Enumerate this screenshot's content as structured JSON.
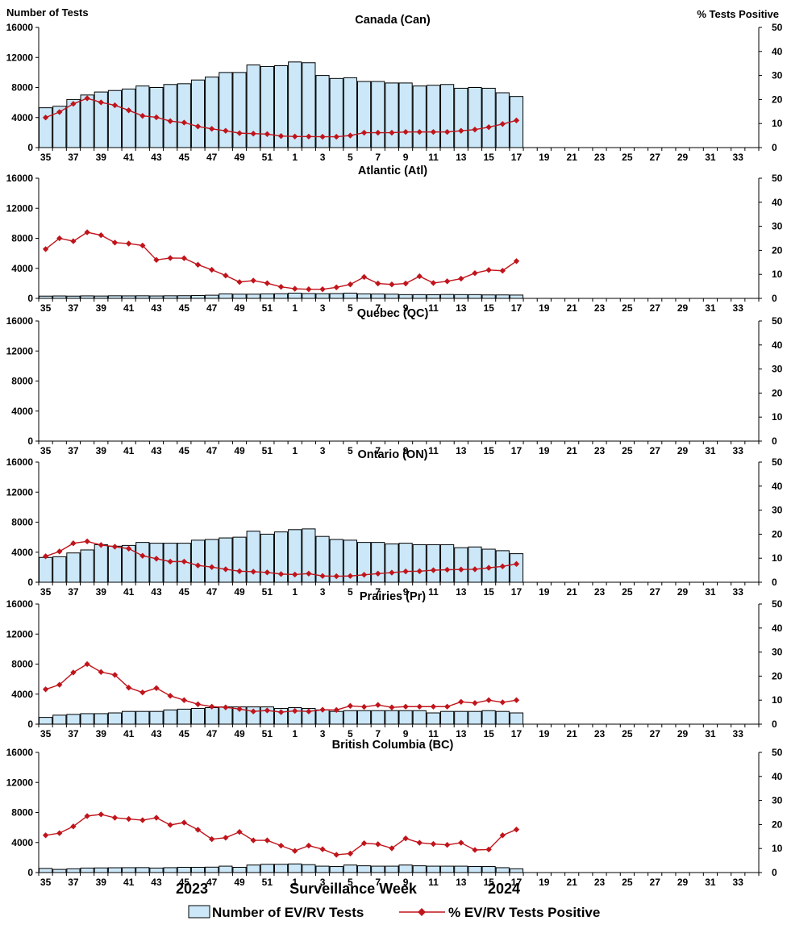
{
  "header": {
    "left_axis_title": "Number of Tests",
    "right_axis_title": "% Tests Positive"
  },
  "chart_data": {
    "type": "bar+line",
    "x_labels": [
      "35",
      "37",
      "39",
      "41",
      "43",
      "45",
      "47",
      "49",
      "51",
      "1",
      "3",
      "5",
      "7",
      "9",
      "11",
      "13",
      "15",
      "17",
      "19",
      "21",
      "23",
      "25",
      "27",
      "29",
      "31",
      "33"
    ],
    "y_left_ticks": [
      "0",
      "4000",
      "8000",
      "12000",
      "16000"
    ],
    "y_right_ticks": [
      "0",
      "10",
      "20",
      "30",
      "40",
      "50"
    ],
    "ylim_left": [
      0,
      16000
    ],
    "ylim_right": [
      0,
      50
    ],
    "year_labels": [
      "2023",
      "2024"
    ],
    "xlabel": "Surveillance Week",
    "legend": {
      "bars": "Number of EV/RV Tests",
      "line": "% EV/RV Tests Positive"
    },
    "colors": {
      "bar_fill": "#cce8f8",
      "bar_stroke": "#000000",
      "line": "#c0141b"
    },
    "panels": [
      {
        "title": "Canada (Can)",
        "tests": [
          5300,
          5500,
          6400,
          7000,
          7400,
          7600,
          7800,
          8200,
          8000,
          8400,
          8500,
          9000,
          9400,
          10000,
          10000,
          11000,
          10800,
          10900,
          11400,
          11300,
          9600,
          9200,
          9300,
          8800,
          8800,
          8600,
          8600,
          8200,
          8300,
          8400,
          7900,
          8000,
          7900,
          7300,
          6800
        ],
        "positive": [
          12.5,
          14.8,
          18.2,
          20.5,
          18.8,
          17.6,
          15.5,
          13.2,
          12.6,
          11.0,
          10.4,
          8.8,
          7.8,
          7.0,
          6.0,
          5.8,
          5.6,
          4.8,
          4.6,
          4.6,
          4.5,
          4.5,
          5.0,
          6.2,
          6.2,
          6.2,
          6.5,
          6.5,
          6.5,
          6.5,
          7.0,
          7.5,
          8.5,
          9.8,
          11.3
        ]
      },
      {
        "title": "Atlantic (Atl)",
        "tests": [
          300,
          320,
          300,
          330,
          310,
          340,
          330,
          340,
          320,
          340,
          350,
          380,
          420,
          600,
          560,
          560,
          600,
          620,
          700,
          640,
          620,
          640,
          700,
          600,
          580,
          560,
          500,
          500,
          480,
          520,
          500,
          500,
          460,
          460,
          440
        ],
        "positive": [
          20.5,
          25.0,
          23.8,
          27.5,
          26.3,
          23.2,
          22.8,
          22.0,
          16.0,
          16.8,
          16.7,
          14.0,
          11.9,
          9.5,
          6.8,
          7.4,
          6.3,
          4.8,
          4.0,
          3.8,
          3.8,
          4.6,
          5.8,
          8.9,
          6.2,
          5.8,
          6.2,
          9.2,
          6.4,
          7.1,
          8.2,
          10.5,
          11.8,
          11.5,
          15.5
        ]
      },
      {
        "title": "Quebec (QC)",
        "tests": [],
        "positive": []
      },
      {
        "title": "Ontario (ON)",
        "tests": [
          3300,
          3400,
          3900,
          4300,
          5000,
          4800,
          4900,
          5300,
          5200,
          5200,
          5200,
          5600,
          5700,
          5900,
          6000,
          6800,
          6400,
          6700,
          7000,
          7100,
          6100,
          5700,
          5600,
          5300,
          5300,
          5100,
          5200,
          5000,
          5000,
          5000,
          4600,
          4700,
          4400,
          4200,
          3800
        ],
        "positive": [
          10.8,
          12.8,
          16.2,
          17.0,
          15.5,
          14.8,
          14.0,
          11.0,
          9.8,
          8.6,
          8.6,
          7.0,
          6.3,
          5.4,
          4.6,
          4.4,
          4.1,
          3.4,
          3.2,
          3.6,
          2.6,
          2.5,
          2.6,
          3.1,
          3.6,
          4.0,
          4.5,
          4.6,
          5.0,
          5.2,
          5.3,
          5.4,
          6.0,
          6.6,
          7.6
        ]
      },
      {
        "title": "Prairies (Pr)",
        "tests": [
          900,
          1200,
          1300,
          1400,
          1400,
          1500,
          1700,
          1700,
          1700,
          1900,
          2000,
          2100,
          2200,
          2300,
          2300,
          2300,
          2300,
          2100,
          2200,
          2100,
          1900,
          1700,
          1800,
          1800,
          1800,
          1800,
          1800,
          1800,
          1500,
          1700,
          1700,
          1700,
          1800,
          1700,
          1500
        ],
        "positive": [
          14.5,
          16.4,
          21.5,
          25.0,
          21.7,
          20.5,
          15.2,
          13.2,
          15.0,
          11.8,
          10.0,
          8.3,
          7.3,
          7.0,
          6.3,
          5.3,
          5.7,
          5.0,
          5.5,
          5.3,
          6.0,
          5.9,
          7.6,
          7.2,
          8.0,
          7.0,
          7.3,
          7.3,
          7.3,
          7.3,
          9.3,
          8.8,
          10.0,
          9.1,
          10.0
        ]
      },
      {
        "title": "British Columbia (BC)",
        "tests": [
          550,
          420,
          500,
          600,
          620,
          640,
          650,
          660,
          600,
          650,
          700,
          700,
          720,
          850,
          700,
          1000,
          1100,
          1100,
          1150,
          1050,
          850,
          800,
          1000,
          900,
          850,
          850,
          1000,
          900,
          850,
          850,
          850,
          800,
          800,
          650,
          500
        ],
        "positive": [
          15.5,
          16.4,
          19.2,
          23.5,
          24.2,
          22.8,
          22.3,
          21.8,
          22.8,
          19.8,
          20.8,
          17.8,
          13.9,
          14.5,
          16.9,
          13.4,
          13.4,
          11.2,
          9.0,
          11.2,
          9.7,
          7.4,
          7.9,
          12.2,
          11.8,
          10.1,
          14.2,
          12.4,
          11.9,
          11.5,
          12.4,
          9.4,
          9.6,
          15.5,
          17.9
        ]
      }
    ]
  }
}
